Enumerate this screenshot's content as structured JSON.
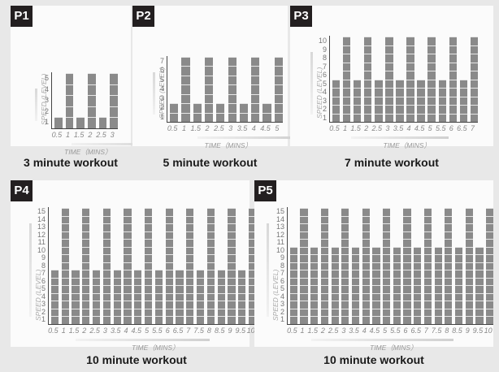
{
  "panels": [
    {
      "badge": "P1",
      "caption": "3 minute workout"
    },
    {
      "badge": "P2",
      "caption": "5 minute workout"
    },
    {
      "badge": "P3",
      "caption": "7 minute workout"
    },
    {
      "badge": "P4",
      "caption": "10 minute workout"
    },
    {
      "badge": "P5",
      "caption": "10 minute workout"
    }
  ],
  "axis": {
    "ylabel": "SPEED (LEVEL)",
    "xlabel": "TIME（MINS）"
  },
  "colors": {
    "bar": "#8a8a8a",
    "badge_bg": "#231f20",
    "page_bg": "#e8e8e8",
    "panel_bg": "#fbfbfb"
  },
  "chart_data": [
    {
      "type": "bar",
      "title": "P1 - 3 minute workout",
      "xlabel": "TIME (MINS)",
      "ylabel": "SPEED (LEVEL)",
      "categories": [
        "0.5",
        "1",
        "1.5",
        "2",
        "2.5",
        "3"
      ],
      "values": [
        1,
        5,
        1,
        5,
        1,
        5
      ],
      "yticks": [
        1,
        2,
        3,
        4,
        5
      ],
      "ylim": [
        0,
        5
      ]
    },
    {
      "type": "bar",
      "title": "P2 - 5 minute workout",
      "xlabel": "TIME (MINS)",
      "ylabel": "SPEED (LEVEL)",
      "categories": [
        "0.5",
        "1",
        "1.5",
        "2",
        "2.5",
        "3",
        "3.5",
        "4",
        "4.5",
        "5"
      ],
      "values": [
        2,
        7,
        2,
        7,
        2,
        7,
        2,
        7,
        2,
        7
      ],
      "yticks": [
        1,
        2,
        3,
        4,
        5,
        6,
        7
      ],
      "ylim": [
        0,
        7
      ]
    },
    {
      "type": "bar",
      "title": "P3 - 7 minute workout",
      "xlabel": "TIME (MINS)",
      "ylabel": "SPEED (LEVEL)",
      "categories": [
        "0.5",
        "1",
        "1.5",
        "2",
        "2.5",
        "3",
        "3.5",
        "4",
        "4.5",
        "5",
        "5.5",
        "6",
        "6.5",
        "7"
      ],
      "values": [
        5,
        10,
        5,
        10,
        5,
        10,
        5,
        10,
        5,
        10,
        5,
        10,
        5,
        10
      ],
      "yticks": [
        1,
        2,
        3,
        4,
        5,
        6,
        7,
        8,
        9,
        10
      ],
      "ylim": [
        0,
        10
      ]
    },
    {
      "type": "bar",
      "title": "P4 - 10 minute workout",
      "xlabel": "TIME (MINS)",
      "ylabel": "SPEED (LEVEL)",
      "categories": [
        "0.5",
        "1",
        "1.5",
        "2",
        "2.5",
        "3",
        "3.5",
        "4",
        "4.5",
        "5",
        "5.5",
        "6",
        "6.5",
        "7",
        "7.5",
        "8",
        "8.5",
        "9",
        "9.5",
        "10"
      ],
      "values": [
        7,
        15,
        7,
        15,
        7,
        15,
        7,
        15,
        7,
        15,
        7,
        15,
        7,
        15,
        7,
        15,
        7,
        15,
        7,
        15
      ],
      "yticks": [
        1,
        2,
        3,
        4,
        5,
        6,
        7,
        8,
        9,
        10,
        11,
        12,
        13,
        14,
        15
      ],
      "ylim": [
        0,
        15
      ]
    },
    {
      "type": "bar",
      "title": "P5 - 10 minute workout",
      "xlabel": "TIME (MINS)",
      "ylabel": "SPEED (LEVEL)",
      "categories": [
        "0.5",
        "1",
        "1.5",
        "2",
        "2.5",
        "3",
        "3.5",
        "4",
        "4.5",
        "5",
        "5.5",
        "6",
        "6.5",
        "7",
        "7.5",
        "8",
        "8.5",
        "9",
        "9.5",
        "10"
      ],
      "values": [
        10,
        15,
        10,
        15,
        10,
        15,
        10,
        15,
        10,
        15,
        10,
        15,
        10,
        15,
        10,
        15,
        10,
        15,
        10,
        15
      ],
      "yticks": [
        1,
        2,
        3,
        4,
        5,
        6,
        7,
        8,
        9,
        10,
        11,
        12,
        13,
        14,
        15
      ],
      "ylim": [
        0,
        15
      ]
    }
  ]
}
